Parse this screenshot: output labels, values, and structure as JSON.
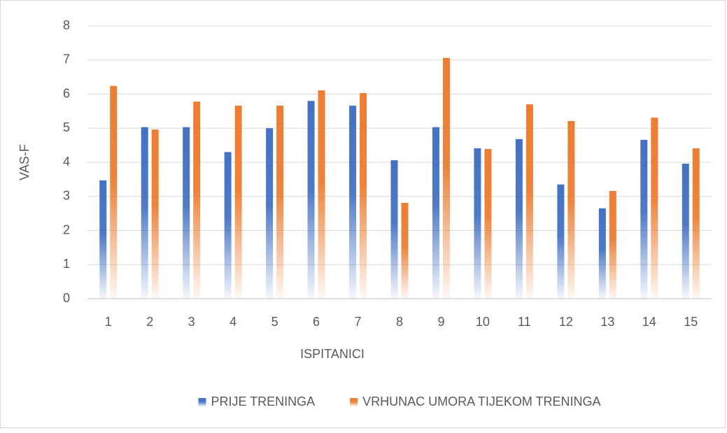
{
  "chart_data": {
    "type": "bar",
    "x_label": "ISPITANICI",
    "y_label": "VAS-F",
    "categories": [
      "1",
      "2",
      "3",
      "4",
      "5",
      "6",
      "7",
      "8",
      "9",
      "10",
      "11",
      "12",
      "13",
      "14",
      "15"
    ],
    "series": [
      {
        "name": "PRIJE TRENINGA",
        "color": "#4472c4",
        "values": [
          3.47,
          5.03,
          5.03,
          4.3,
          5.0,
          5.8,
          5.66,
          4.06,
          5.03,
          4.41,
          4.68,
          3.35,
          2.65,
          4.66,
          3.96
        ]
      },
      {
        "name": "VRHUNAC UMORA TIJEKOM TRENINGA",
        "color": "#ed7d31",
        "values": [
          6.24,
          4.96,
          5.78,
          5.66,
          5.66,
          6.11,
          6.03,
          2.81,
          7.06,
          4.39,
          5.7,
          5.21,
          3.16,
          5.31,
          4.41
        ]
      }
    ],
    "ylim": [
      0,
      8
    ],
    "yticks": [
      0,
      1,
      2,
      3,
      4,
      5,
      6,
      7,
      8
    ],
    "grid": true,
    "legend": "bottom"
  }
}
